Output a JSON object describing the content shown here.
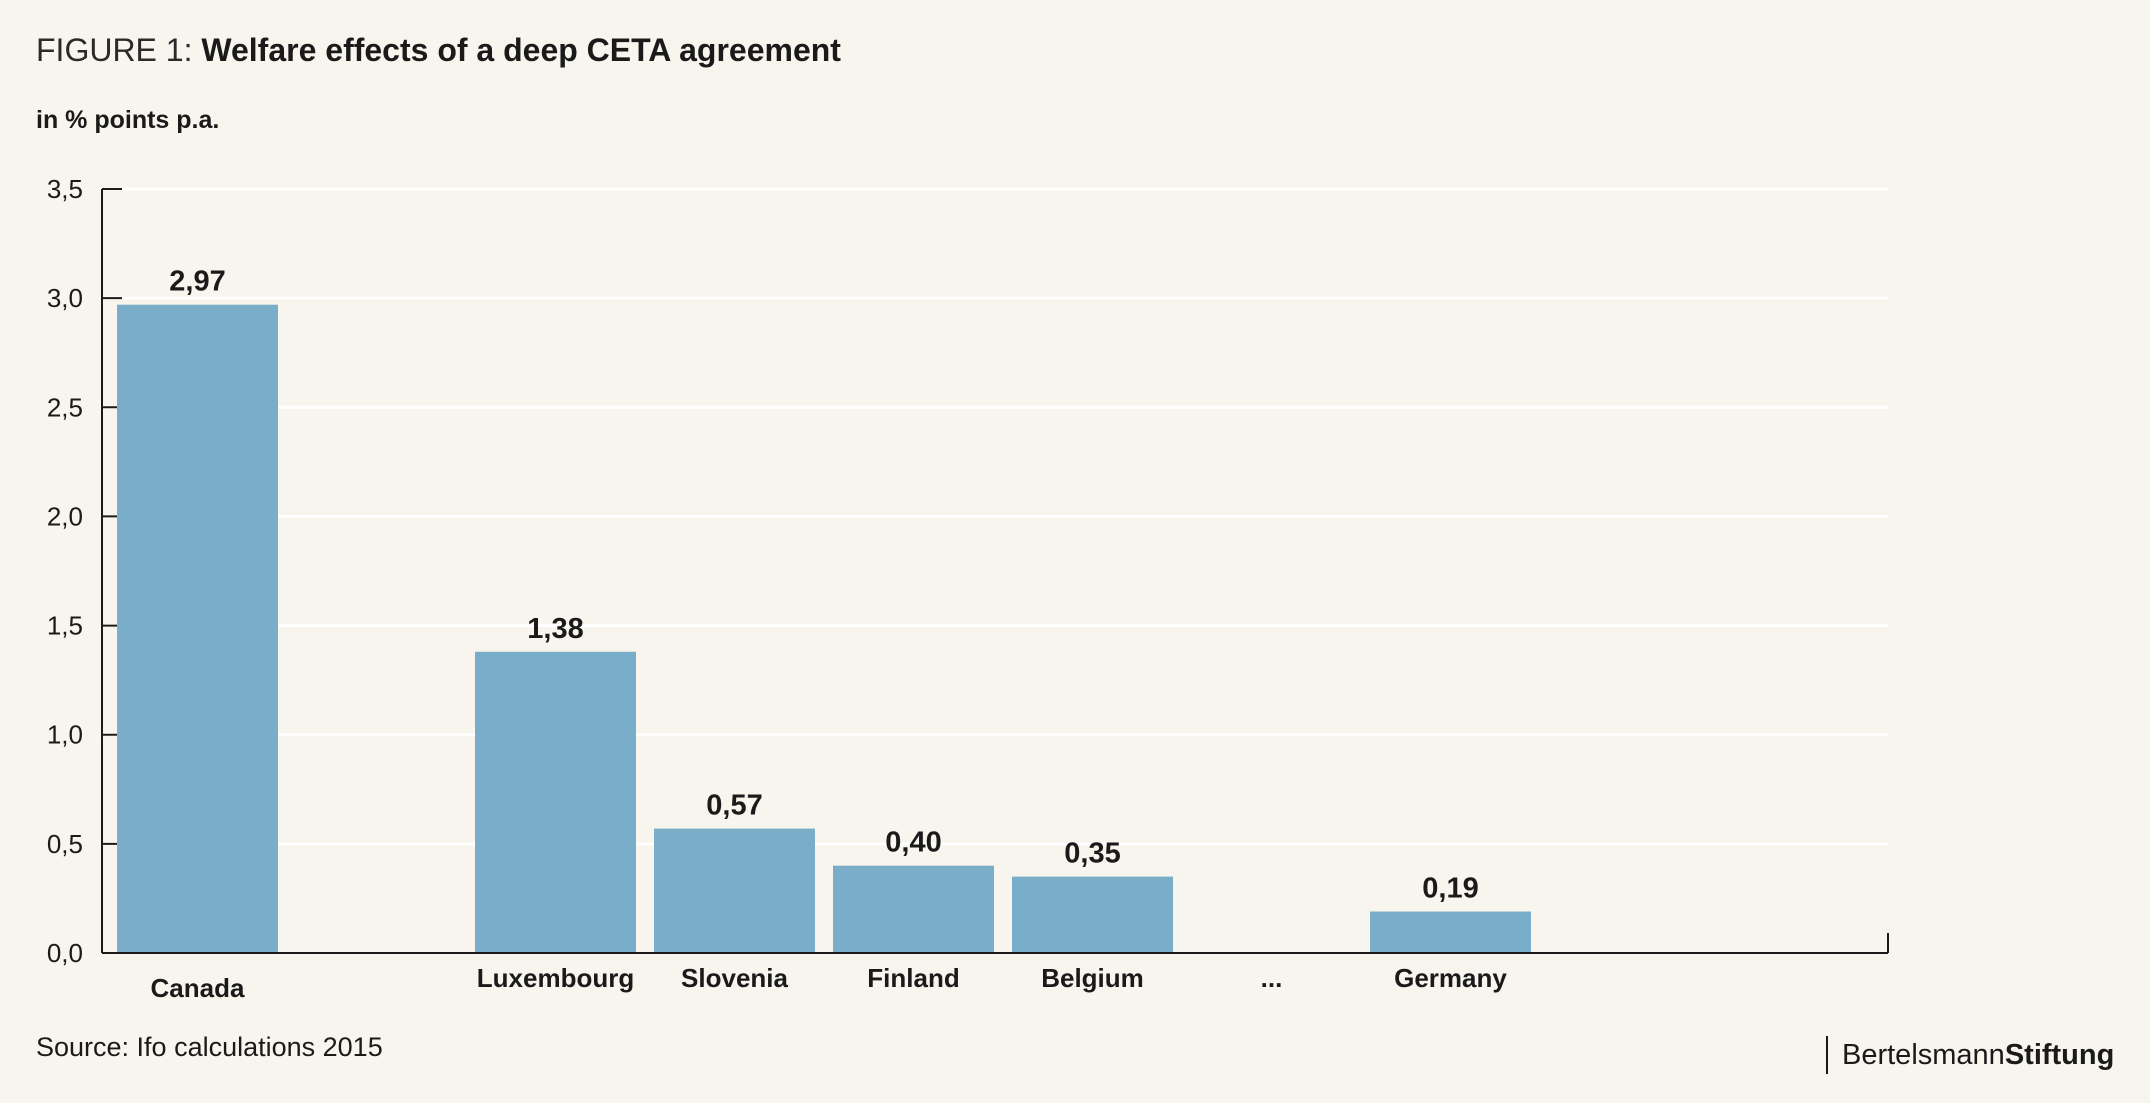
{
  "header": {
    "title_prefix": "FIGURE 1: ",
    "title_main": "Welfare effects of a deep CETA agreement",
    "unit_label": "in % points p.a."
  },
  "footer": {
    "source": "Source: Ifo calculations 2015",
    "logo_regular": "Bertelsmann",
    "logo_bold": "Stiftung"
  },
  "colors": {
    "background": "#f7f5ee",
    "bar": "#7aaec8",
    "axis": "#1a1a1a",
    "grid": "#ffffff",
    "text": "#1a1a1a"
  },
  "chart_data": {
    "type": "bar",
    "title": "Welfare effects of a deep CETA agreement",
    "ylabel": "in % points p.a.",
    "xlabel": "",
    "ylim": [
      0,
      3.5
    ],
    "yticks": [
      "0,0",
      "0,5",
      "1,0",
      "1,5",
      "2,0",
      "2,5",
      "3,0",
      "3,5"
    ],
    "ytick_values": [
      0,
      0.5,
      1.0,
      1.5,
      2.0,
      2.5,
      3.0,
      3.5
    ],
    "grid": true,
    "legend": "none",
    "categories": [
      "Canada",
      "",
      "Luxembourg",
      "Slovenia",
      "Finland",
      "Belgium",
      "...",
      "Germany",
      ""
    ],
    "values": [
      2.97,
      null,
      1.38,
      0.57,
      0.4,
      0.35,
      null,
      0.19,
      null
    ],
    "value_labels": [
      "2,97",
      "",
      "1,38",
      "0,57",
      "0,40",
      "0,35",
      "",
      "0,19",
      ""
    ]
  }
}
